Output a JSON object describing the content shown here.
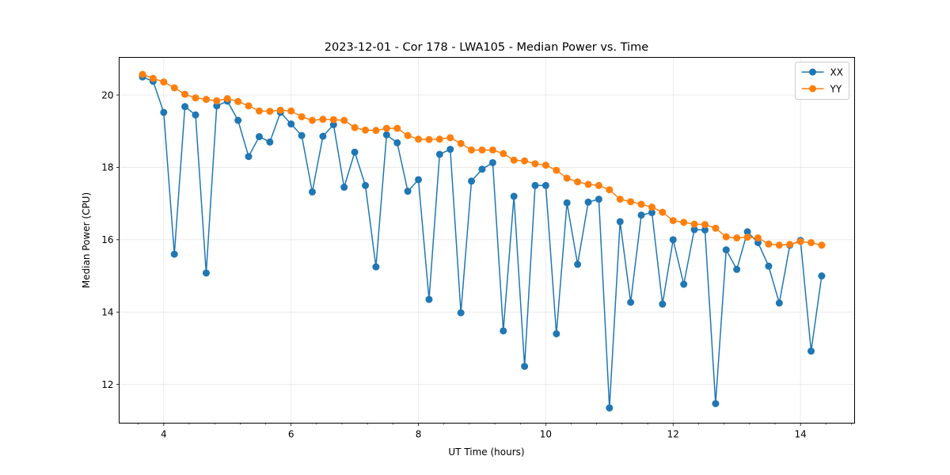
{
  "chart_data": {
    "type": "line",
    "title": "2023-12-01 - Cor 178 - LWA105 - Median Power vs. Time",
    "xlabel": "UT Time (hours)",
    "ylabel": "Median Power (CPU)",
    "xlim": [
      3.3,
      14.85
    ],
    "ylim": [
      10.93,
      21.04
    ],
    "xticks": [
      4,
      6,
      8,
      10,
      12,
      14
    ],
    "yticks": [
      12,
      14,
      16,
      18,
      20
    ],
    "grid": true,
    "legend_position": "top-right",
    "x": [
      3.667,
      3.833,
      4.0,
      4.167,
      4.333,
      4.5,
      4.667,
      4.833,
      5.0,
      5.167,
      5.333,
      5.5,
      5.667,
      5.833,
      6.0,
      6.167,
      6.333,
      6.5,
      6.667,
      6.833,
      7.0,
      7.167,
      7.333,
      7.5,
      7.667,
      7.833,
      8.0,
      8.167,
      8.333,
      8.5,
      8.667,
      8.833,
      9.0,
      9.167,
      9.333,
      9.5,
      9.667,
      9.833,
      10.0,
      10.167,
      10.333,
      10.5,
      10.667,
      10.833,
      11.0,
      11.167,
      11.333,
      11.5,
      11.667,
      11.833,
      12.0,
      12.167,
      12.333,
      12.5,
      12.667,
      12.833,
      13.0,
      13.167,
      13.333,
      13.5,
      13.667,
      13.833,
      14.0,
      14.167,
      14.333
    ],
    "series": [
      {
        "name": "XX",
        "color": "#1f77b4",
        "values": [
          20.5,
          20.38,
          19.52,
          15.6,
          19.68,
          19.45,
          15.08,
          19.7,
          19.83,
          19.3,
          18.3,
          18.85,
          18.7,
          19.52,
          19.2,
          18.88,
          17.32,
          18.86,
          19.18,
          17.45,
          18.42,
          17.5,
          15.25,
          18.9,
          18.68,
          17.34,
          17.66,
          14.35,
          18.36,
          18.5,
          13.98,
          17.62,
          17.95,
          18.13,
          13.48,
          17.2,
          12.5,
          17.5,
          17.5,
          13.4,
          17.02,
          15.32,
          17.04,
          17.12,
          11.35,
          16.5,
          14.27,
          16.68,
          16.75,
          14.22,
          16.0,
          14.77,
          16.28,
          16.27,
          11.47,
          15.72,
          15.18,
          16.22,
          15.92,
          15.27,
          14.25,
          15.85,
          15.98,
          12.92,
          15.0
        ]
      },
      {
        "name": "YY",
        "color": "#ff7f0e",
        "values": [
          20.57,
          20.46,
          20.36,
          20.2,
          20.02,
          19.92,
          19.88,
          19.84,
          19.9,
          19.82,
          19.7,
          19.56,
          19.55,
          19.58,
          19.56,
          19.4,
          19.3,
          19.33,
          19.32,
          19.3,
          19.1,
          19.03,
          19.02,
          19.08,
          19.08,
          18.88,
          18.78,
          18.77,
          18.78,
          18.82,
          18.66,
          18.48,
          18.48,
          18.48,
          18.38,
          18.2,
          18.18,
          18.1,
          18.06,
          17.92,
          17.7,
          17.6,
          17.53,
          17.5,
          17.38,
          17.12,
          17.05,
          16.98,
          16.9,
          16.76,
          16.53,
          16.48,
          16.43,
          16.42,
          16.32,
          16.08,
          16.05,
          16.07,
          16.05,
          15.88,
          15.85,
          15.87,
          15.95,
          15.92,
          15.85
        ]
      }
    ]
  }
}
